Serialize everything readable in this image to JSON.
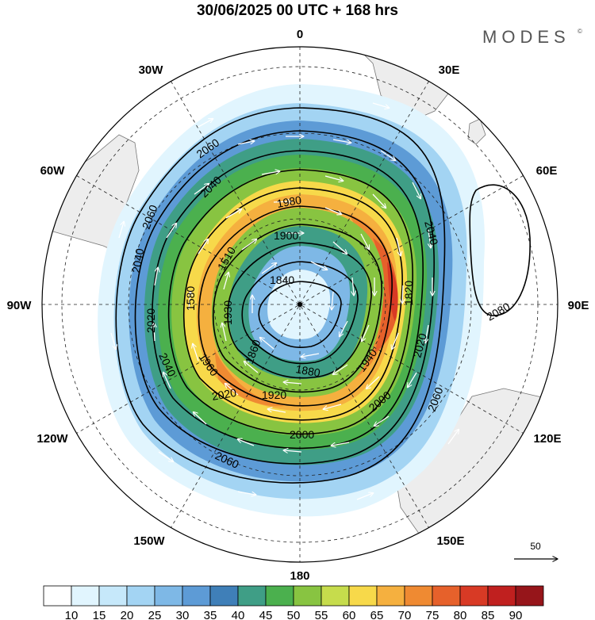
{
  "title": "30/06/2025  00 UTC  + 168 hrs",
  "brand": {
    "name": "MODES",
    "mark": "©"
  },
  "map": {
    "projection": "south-polar-stereographic",
    "longitude_labels": [
      "0",
      "30E",
      "60E",
      "90E",
      "120E",
      "150E",
      "180",
      "150W",
      "120W",
      "90W",
      "60W",
      "30W"
    ],
    "geopotential_contour_labels": [
      "2060",
      "2060",
      "2060",
      "2060",
      "2040",
      "2040",
      "2040",
      "2040",
      "2020",
      "2020",
      "2020",
      "2000",
      "2000",
      "1980",
      "1960",
      "1940",
      "1920",
      "1900",
      "1880",
      "1860",
      "1840",
      "1820",
      "1580",
      "1930",
      "1510",
      "2080"
    ],
    "wind_reference_vector": "50"
  },
  "colorbar": {
    "tick_labels": [
      "10",
      "15",
      "20",
      "25",
      "30",
      "35",
      "40",
      "45",
      "50",
      "55",
      "60",
      "65",
      "70",
      "75",
      "80",
      "85",
      "90"
    ],
    "colors": [
      "#ffffff",
      "#e1f5fe",
      "#c6e8fa",
      "#a3d4f3",
      "#7eb8e6",
      "#5d9bd6",
      "#3f7fb8",
      "#3f9e86",
      "#4bb04e",
      "#88c441",
      "#c6dc4c",
      "#f7d94a",
      "#f5b03f",
      "#ef8a32",
      "#e6612b",
      "#d83a25",
      "#c0201f",
      "#96151a"
    ]
  }
}
